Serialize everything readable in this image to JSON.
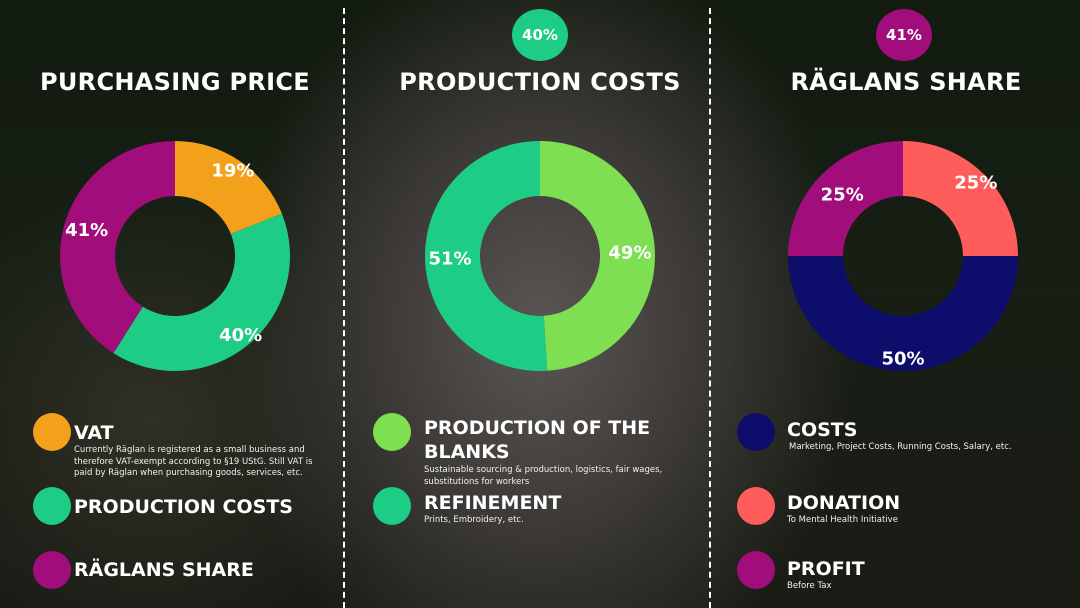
{
  "colors": {
    "vat": "#f3a01a",
    "production_costs": "#1dcc85",
    "raglans_share": "#a10d7a",
    "production_blanks": "#7fdf52",
    "refinement": "#1dcc85",
    "costs": "#0d0d6b",
    "donation": "#ff5c5c",
    "profit": "#a10d7a"
  },
  "headers": {
    "purchasing_title": "PURCHASING PRICE",
    "production_title": "PRODUCTION COSTS",
    "production_badge": "40%",
    "share_title": "RÄGLANS SHARE",
    "share_badge": "41%"
  },
  "chart_data": [
    {
      "type": "pie",
      "title": "PURCHASING PRICE",
      "categories": [
        "VAT",
        "PRODUCTION COSTS",
        "RÄGLANS SHARE"
      ],
      "values": [
        19,
        40,
        41
      ],
      "labels": [
        "19%",
        "40%",
        "41%"
      ],
      "colors": [
        "#f3a01a",
        "#1dcc85",
        "#a10d7a"
      ]
    },
    {
      "type": "pie",
      "title": "PRODUCTION COSTS",
      "categories": [
        "PRODUCTION OF THE BLANKS",
        "REFINEMENT"
      ],
      "values": [
        49,
        51
      ],
      "labels": [
        "49%",
        "51%"
      ],
      "colors": [
        "#7fdf52",
        "#1dcc85"
      ]
    },
    {
      "type": "pie",
      "title": "RÄGLANS SHARE",
      "categories": [
        "DONATION",
        "COSTS",
        "PROFIT"
      ],
      "values": [
        25,
        50,
        25
      ],
      "labels": [
        "25%",
        "50%",
        "25%"
      ],
      "colors": [
        "#ff5c5c",
        "#0d0d6b",
        "#a10d7a"
      ]
    }
  ],
  "legend": {
    "vat": {
      "title": "VAT",
      "desc": "Currently Räglan is registered as a small business and therefore VAT-exempt according to §19 UStG. Still VAT is paid by Räglan when purchasing goods, services, etc."
    },
    "production_costs": {
      "title": "PRODUCTION COSTS"
    },
    "raglans_share": {
      "title": "RÄGLANS SHARE"
    },
    "blanks": {
      "title": "PRODUCTION OF THE BLANKS",
      "desc": "Sustainable sourcing & production, logistics, fair wages, substitutions for workers"
    },
    "refinement": {
      "title": "REFINEMENT",
      "desc": "Prints, Embroidery, etc."
    },
    "costs": {
      "title": "COSTS",
      "desc": "Marketing, Project Costs, Running Costs, Salary, etc."
    },
    "donation": {
      "title": "DONATION",
      "desc": "To Mental Health Initiative"
    },
    "profit": {
      "title": "PROFIT",
      "desc": "Before Tax"
    }
  }
}
